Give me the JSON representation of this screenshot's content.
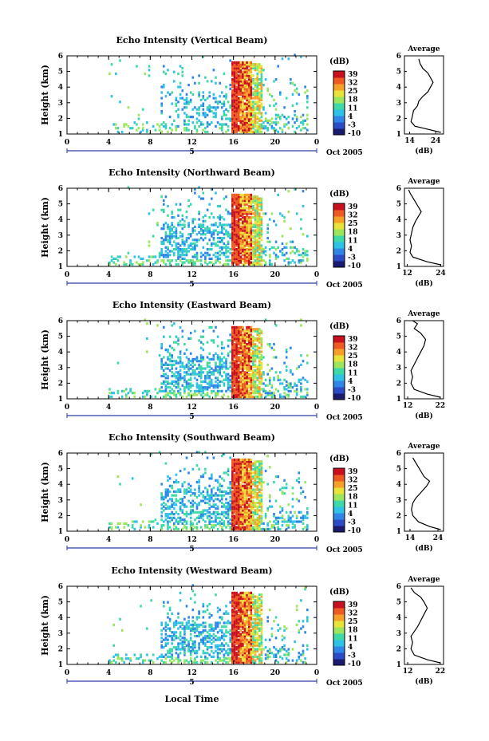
{
  "colorbar": {
    "unit": "(dB)",
    "ticks": [
      "39",
      "32",
      "25",
      "18",
      "11",
      "4",
      "-3",
      "-10"
    ],
    "colors": [
      "#1a1a6e",
      "#2b4cc6",
      "#2f86e8",
      "#2fc1e6",
      "#3fd9a8",
      "#9be65c",
      "#e8e33a",
      "#f6a02a",
      "#ef5a22",
      "#c8101e"
    ]
  },
  "date_label": "Oct 2005",
  "bottom_xlabel": "Local Time",
  "chart_data": [
    {
      "type": "heatmap",
      "title": "Echo Intensity (Vertical Beam)",
      "ylabel": "Height (km)",
      "yticks": [
        1,
        2,
        3,
        4,
        5,
        6
      ],
      "xticks": [
        "0",
        "4",
        "8",
        "12",
        "16",
        "20",
        "0"
      ],
      "xlim": [
        0,
        24
      ],
      "ylim": [
        1,
        6
      ],
      "day_marker": "5",
      "avg": {
        "title": "Average",
        "xlabel": "(dB)",
        "xticks": [
          "14",
          "24"
        ],
        "xlim": [
          12,
          27
        ],
        "ylim": [
          1,
          6
        ],
        "profile": [
          [
            1.1,
            26
          ],
          [
            1.3,
            21
          ],
          [
            1.5,
            16
          ],
          [
            1.8,
            14.5
          ],
          [
            2.1,
            15
          ],
          [
            2.5,
            15.5
          ],
          [
            2.8,
            17
          ],
          [
            3.1,
            17.5
          ],
          [
            3.4,
            19
          ],
          [
            3.7,
            21
          ],
          [
            4.0,
            22
          ],
          [
            4.3,
            23
          ],
          [
            4.6,
            22
          ],
          [
            4.9,
            21
          ],
          [
            5.2,
            19
          ],
          [
            5.5,
            18
          ],
          [
            5.8,
            17.5
          ]
        ]
      }
    },
    {
      "type": "heatmap",
      "title": "Echo Intensity (Northward Beam)",
      "ylabel": "Height (km)",
      "yticks": [
        1,
        2,
        3,
        4,
        5,
        6
      ],
      "xticks": [
        "0",
        "4",
        "8",
        "12",
        "16",
        "20",
        "0"
      ],
      "xlim": [
        0,
        24
      ],
      "ylim": [
        1,
        6
      ],
      "day_marker": "5",
      "avg": {
        "title": "Average",
        "xlabel": "(dB)",
        "xticks": [
          "12",
          "24"
        ],
        "xlim": [
          11,
          25
        ],
        "ylim": [
          1,
          6
        ],
        "profile": [
          [
            1.1,
            24
          ],
          [
            1.3,
            19
          ],
          [
            1.6,
            14
          ],
          [
            1.9,
            13
          ],
          [
            2.3,
            13.5
          ],
          [
            2.7,
            13
          ],
          [
            3.1,
            13.5
          ],
          [
            3.5,
            14
          ],
          [
            3.9,
            15
          ],
          [
            4.2,
            16
          ],
          [
            4.5,
            17
          ],
          [
            4.8,
            16
          ],
          [
            5.1,
            15
          ],
          [
            5.4,
            14
          ],
          [
            5.7,
            13
          ],
          [
            5.9,
            12.5
          ]
        ]
      }
    },
    {
      "type": "heatmap",
      "title": "Echo Intensity (Eastward Beam)",
      "ylabel": "Height (km)",
      "yticks": [
        1,
        2,
        3,
        4,
        5,
        6
      ],
      "xticks": [
        "0",
        "4",
        "8",
        "12",
        "16",
        "20",
        "0"
      ],
      "xlim": [
        0,
        24
      ],
      "ylim": [
        1,
        6
      ],
      "day_marker": "5",
      "avg": {
        "title": "Average",
        "xlabel": "(dB)",
        "xticks": [
          "12",
          "22"
        ],
        "xlim": [
          11,
          23
        ],
        "ylim": [
          1,
          6
        ],
        "profile": [
          [
            1.1,
            22
          ],
          [
            1.3,
            18
          ],
          [
            1.6,
            14
          ],
          [
            2.0,
            13
          ],
          [
            2.4,
            13.5
          ],
          [
            2.8,
            13
          ],
          [
            3.2,
            14
          ],
          [
            3.6,
            15
          ],
          [
            4.0,
            16
          ],
          [
            4.4,
            17
          ],
          [
            4.8,
            17.5
          ],
          [
            5.2,
            16
          ],
          [
            5.5,
            14
          ],
          [
            5.8,
            15
          ],
          [
            6.0,
            13.5
          ]
        ]
      }
    },
    {
      "type": "heatmap",
      "title": "Echo Intensity (Southward Beam)",
      "ylabel": "Height (km)",
      "yticks": [
        1,
        2,
        3,
        4,
        5,
        6
      ],
      "xticks": [
        "0",
        "4",
        "8",
        "12",
        "16",
        "20",
        "0"
      ],
      "xlim": [
        0,
        24
      ],
      "ylim": [
        1,
        6
      ],
      "day_marker": "5",
      "avg": {
        "title": "Average",
        "xlabel": "(dB)",
        "xticks": [
          "14",
          "24"
        ],
        "xlim": [
          12,
          26
        ],
        "ylim": [
          1,
          6
        ],
        "profile": [
          [
            1.1,
            25
          ],
          [
            1.3,
            21
          ],
          [
            1.6,
            17
          ],
          [
            2.0,
            15
          ],
          [
            2.4,
            14.5
          ],
          [
            2.8,
            15
          ],
          [
            3.1,
            16
          ],
          [
            3.5,
            18
          ],
          [
            3.9,
            20
          ],
          [
            4.2,
            21
          ],
          [
            4.5,
            19
          ],
          [
            4.8,
            18
          ],
          [
            5.1,
            17
          ],
          [
            5.4,
            16
          ],
          [
            5.7,
            15
          ]
        ]
      }
    },
    {
      "type": "heatmap",
      "title": "Echo Intensity (Westward Beam)",
      "ylabel": "Height (km)",
      "yticks": [
        1,
        2,
        3,
        4,
        5,
        6
      ],
      "xticks": [
        "0",
        "4",
        "8",
        "12",
        "16",
        "20",
        "0"
      ],
      "xlim": [
        0,
        24
      ],
      "ylim": [
        1,
        6
      ],
      "day_marker": "5",
      "avg": {
        "title": "Average",
        "xlabel": "(dB)",
        "xticks": [
          "12",
          "22"
        ],
        "xlim": [
          11,
          23
        ],
        "ylim": [
          1,
          6
        ],
        "profile": [
          [
            1.1,
            22
          ],
          [
            1.3,
            18
          ],
          [
            1.6,
            14
          ],
          [
            2.0,
            13
          ],
          [
            2.4,
            13.5
          ],
          [
            2.8,
            13
          ],
          [
            3.1,
            14
          ],
          [
            3.4,
            15
          ],
          [
            3.8,
            16
          ],
          [
            4.2,
            17
          ],
          [
            4.6,
            18
          ],
          [
            5.0,
            17
          ],
          [
            5.3,
            16
          ],
          [
            5.6,
            14
          ],
          [
            5.9,
            13
          ]
        ]
      }
    }
  ]
}
